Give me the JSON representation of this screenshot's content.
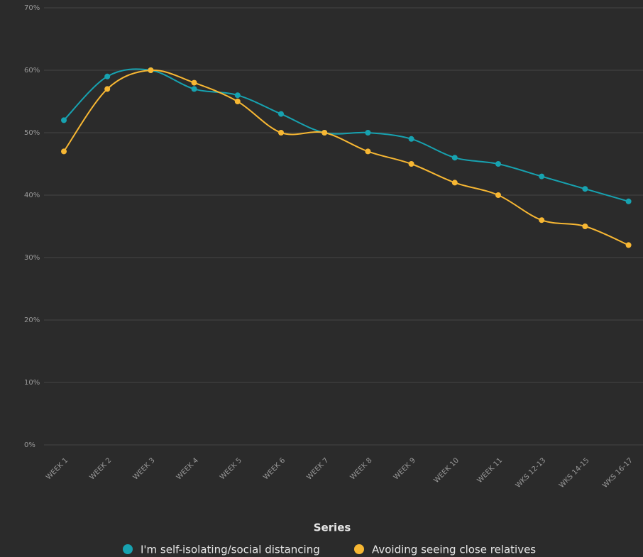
{
  "chart_data": {
    "type": "line",
    "categories": [
      "WEEK 1",
      "WEEK 2",
      "WEEK 3",
      "WEEK 4",
      "WEEK 5",
      "WEEK 6",
      "WEEK 7",
      "WEEK 8",
      "WEEK 9",
      "WEEK 10",
      "WEEK 11",
      "WKS 12-13",
      "WKS 14-15",
      "WKS 16-17"
    ],
    "series": [
      {
        "name": "I'm self-isolating/social distancing",
        "color": "#17a2b0",
        "values": [
          52,
          59,
          60,
          57,
          56,
          53,
          50,
          50,
          49,
          46,
          45,
          43,
          41,
          39
        ]
      },
      {
        "name": "Avoiding seeing close relatives",
        "color": "#f7b733",
        "values": [
          47,
          57,
          60,
          58,
          55,
          50,
          50,
          47,
          45,
          42,
          40,
          36,
          35,
          32
        ]
      }
    ],
    "ylim": [
      0,
      70
    ],
    "yticks": [
      {
        "value": 0,
        "label": "0%"
      },
      {
        "value": 10,
        "label": "10%"
      },
      {
        "value": 20,
        "label": "20%"
      },
      {
        "value": 30,
        "label": "30%"
      },
      {
        "value": 40,
        "label": "40%"
      },
      {
        "value": 50,
        "label": "50%"
      },
      {
        "value": 60,
        "label": "60%"
      },
      {
        "value": 70,
        "label": "70%"
      }
    ],
    "grid": true,
    "legend_title": "Series",
    "legend": "bottom"
  }
}
